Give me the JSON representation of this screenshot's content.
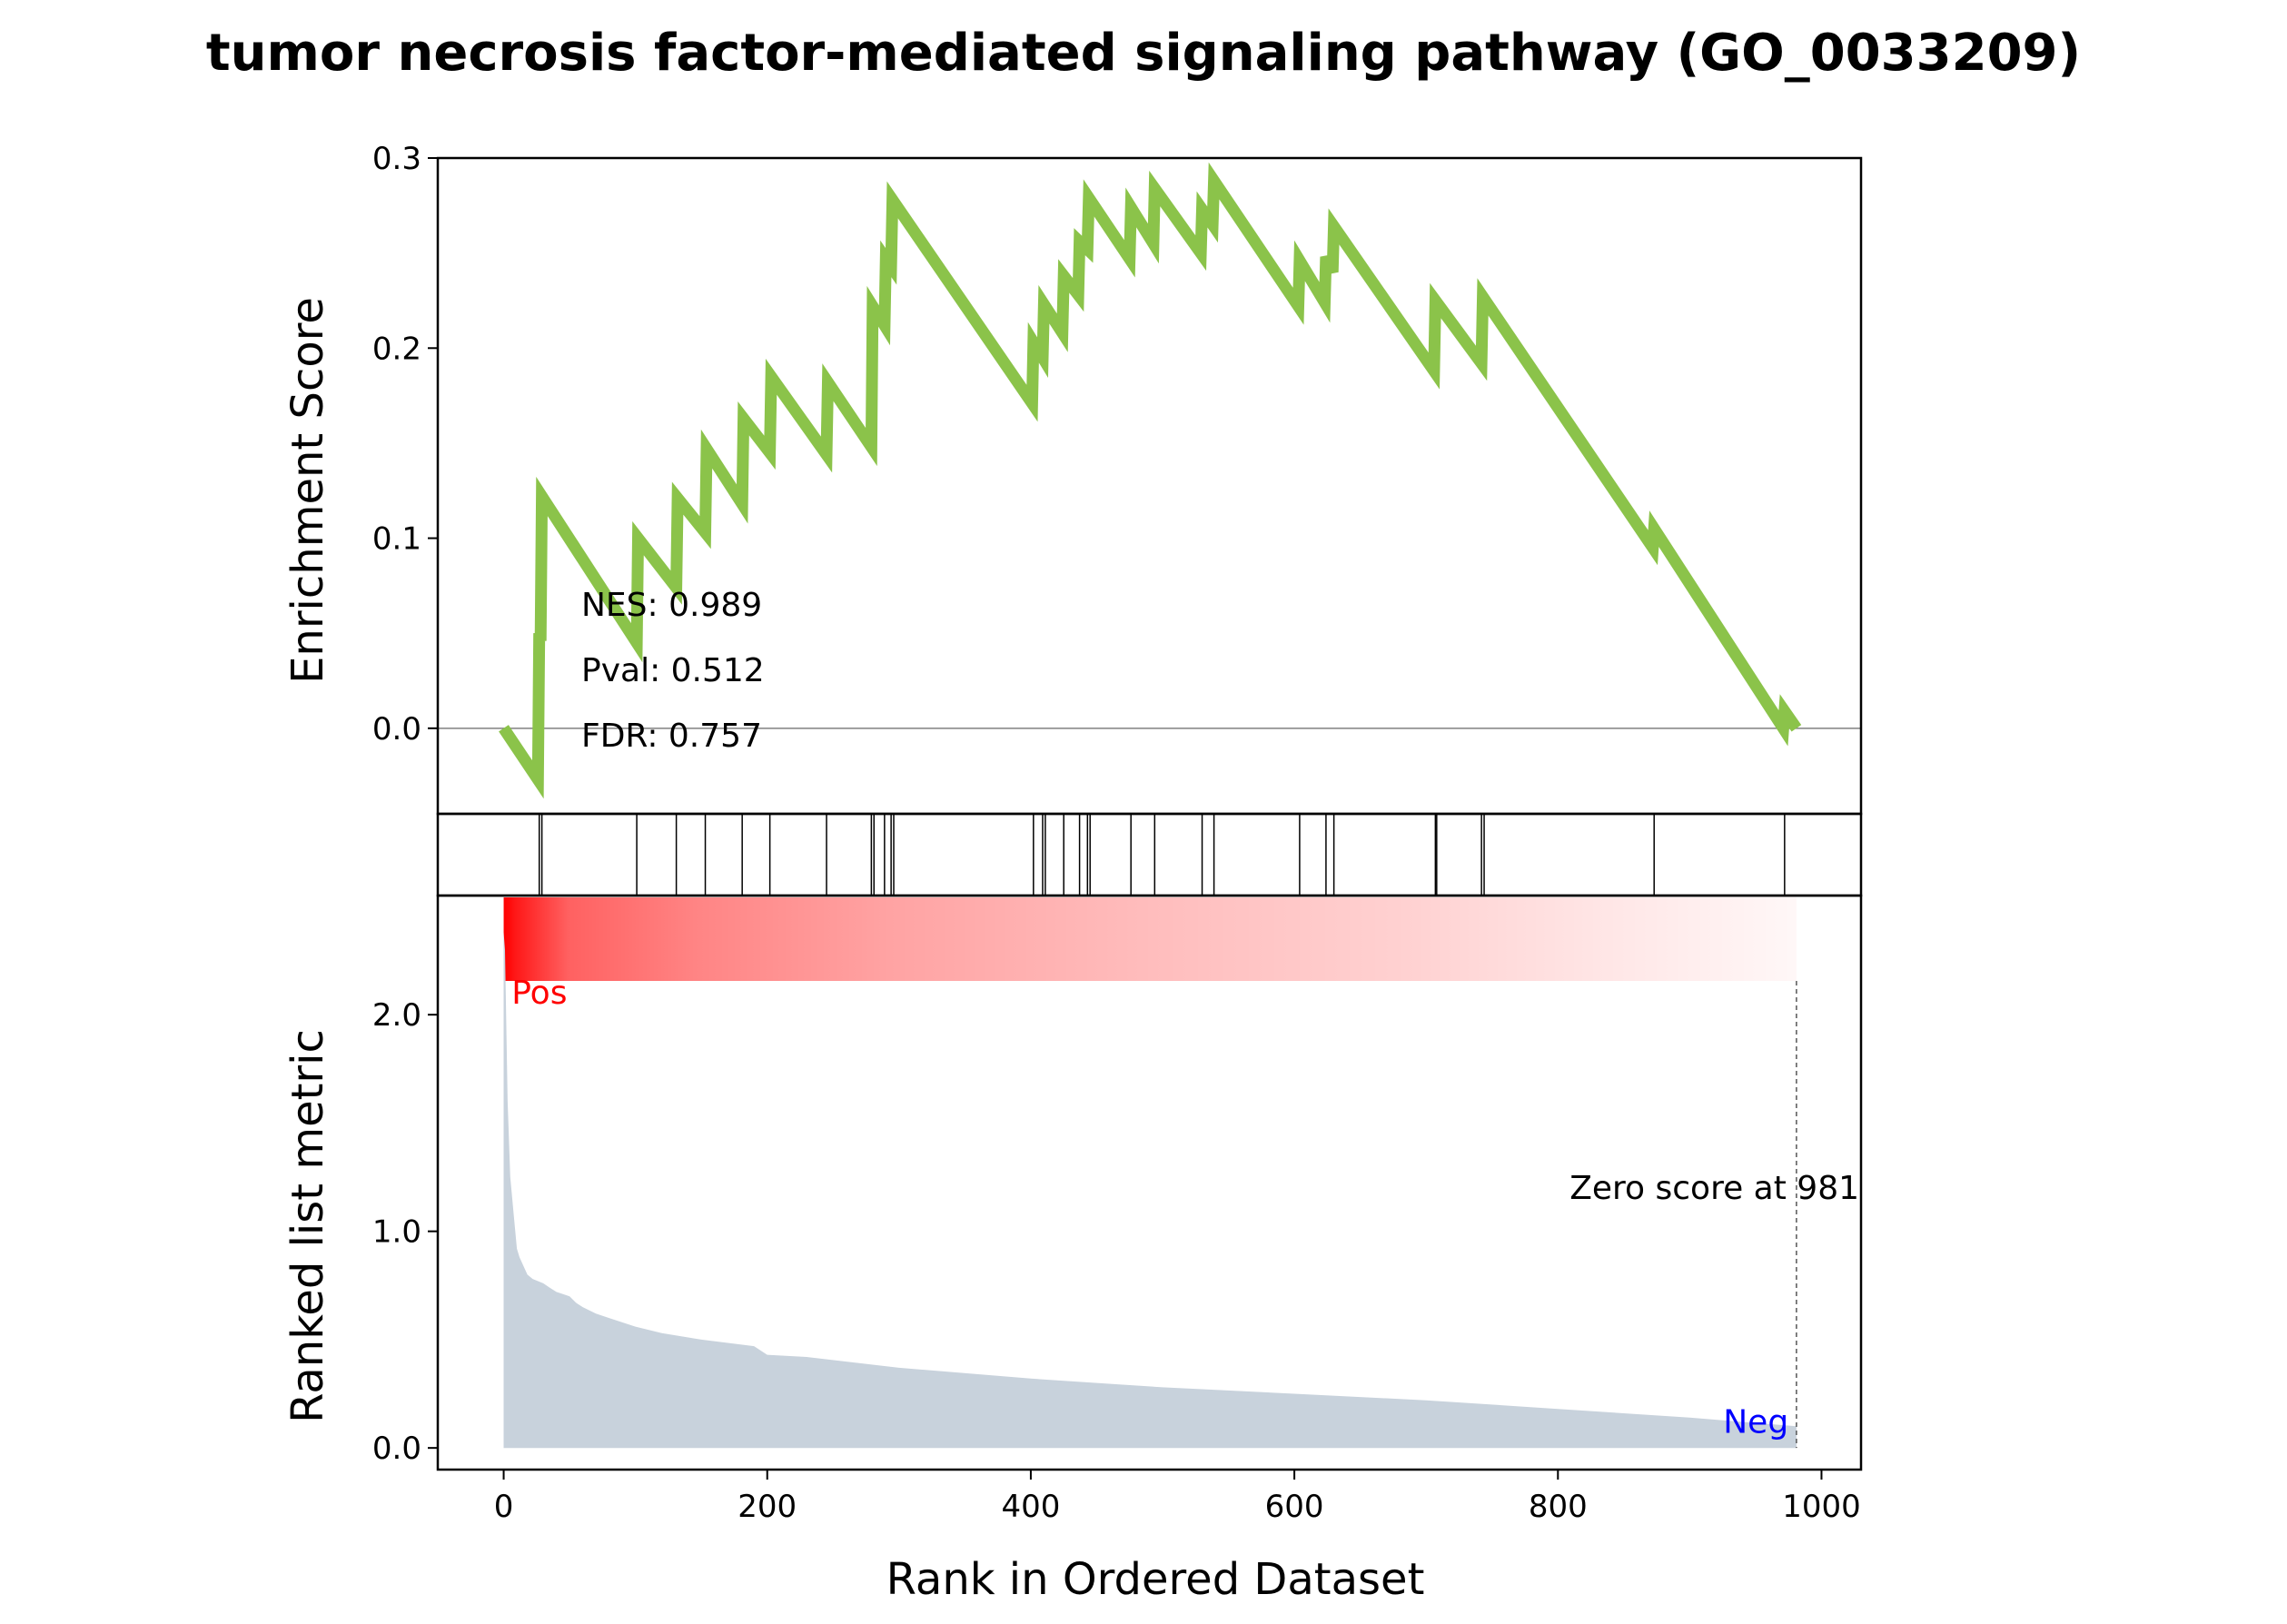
{
  "chart_data": {
    "type": "line",
    "title": "tumor necrosis factor-mediated signaling pathway (GO_0033209)",
    "xlabel": "Rank in Ordered Dataset",
    "xlim": [
      -50,
      1030
    ],
    "x_ticks": [
      0,
      200,
      400,
      600,
      800,
      1000
    ],
    "x_tick_labels": [
      "0",
      "200",
      "400",
      "600",
      "800",
      "1000"
    ],
    "enrichment_panel": {
      "ylabel": "Enrichment Score",
      "ylim": [
        -0.045,
        0.3
      ],
      "y_ticks": [
        0.0,
        0.1,
        0.2,
        0.3
      ],
      "y_tick_labels": [
        "0.0",
        "0.1",
        "0.2",
        "0.3"
      ],
      "line_color": "#8bc34a",
      "zero_line_color": "#808080",
      "stats": [
        "NES: 0.989",
        "Pval: 0.512",
        "FDR: 0.757"
      ],
      "series": [
        {
          "x": [
            0,
            26,
            27,
            28,
            29,
            101,
            102,
            131,
            132,
            153,
            154,
            181,
            182,
            202,
            203,
            245,
            246,
            279,
            280,
            289,
            290,
            294,
            295,
            401,
            402,
            409,
            410,
            424,
            425,
            436,
            437,
            443,
            444,
            475,
            476,
            493,
            494,
            529,
            530,
            538,
            539,
            603,
            604,
            623,
            624,
            629,
            630,
            706,
            707,
            742,
            743,
            872,
            873,
            971,
            972,
            981
          ],
          "y": [
            0.0,
            -0.027,
            0.05,
            0.046,
            0.122,
            0.045,
            0.1,
            0.074,
            0.121,
            0.103,
            0.147,
            0.118,
            0.163,
            0.145,
            0.185,
            0.144,
            0.182,
            0.148,
            0.222,
            0.212,
            0.247,
            0.243,
            0.278,
            0.171,
            0.203,
            0.195,
            0.223,
            0.208,
            0.238,
            0.228,
            0.256,
            0.252,
            0.279,
            0.247,
            0.274,
            0.255,
            0.284,
            0.25,
            0.273,
            0.265,
            0.288,
            0.222,
            0.246,
            0.224,
            0.248,
            0.24,
            0.264,
            0.188,
            0.225,
            0.192,
            0.227,
            0.095,
            0.105,
            0.0,
            0.009,
            0.0
          ]
        }
      ]
    },
    "hits_panel": {
      "hit_ranks": [
        27,
        29,
        101,
        131,
        153,
        181,
        202,
        245,
        279,
        281,
        289,
        294,
        296,
        402,
        409,
        411,
        425,
        437,
        443,
        445,
        476,
        494,
        530,
        539,
        604,
        624,
        630,
        707,
        708,
        742,
        744,
        873,
        972
      ]
    },
    "heatmap_panel": {
      "x_range": [
        0,
        981
      ],
      "color_from": "#ff0000",
      "color_to": "#ffffff"
    },
    "metric_panel": {
      "ylabel": "Ranked list metric",
      "ylim": [
        -0.1,
        2.55
      ],
      "y_ticks": [
        0.0,
        1.0,
        2.0
      ],
      "y_tick_labels": [
        "0.0",
        "1.0",
        "2.0"
      ],
      "fill_color": "#c8d2dc",
      "pos_label": "Pos",
      "pos_color": "#ff0000",
      "neg_label": "Neg",
      "neg_color": "#0000ff",
      "zero_score_label": "Zero score at 981",
      "zero_score_rank": 981,
      "series": [
        {
          "x": [
            0,
            1,
            3,
            5,
            8,
            10,
            12,
            15,
            18,
            22,
            26,
            30,
            35,
            40,
            45,
            50,
            55,
            60,
            70,
            80,
            100,
            120,
            150,
            190,
            200,
            230,
            300,
            400,
            500,
            600,
            700,
            800,
            900,
            981
          ],
          "y": [
            2.38,
            2.3,
            1.6,
            1.25,
            1.05,
            0.92,
            0.88,
            0.84,
            0.8,
            0.78,
            0.77,
            0.76,
            0.74,
            0.72,
            0.71,
            0.7,
            0.67,
            0.65,
            0.62,
            0.6,
            0.56,
            0.53,
            0.5,
            0.47,
            0.43,
            0.42,
            0.37,
            0.32,
            0.28,
            0.25,
            0.22,
            0.18,
            0.14,
            0.1
          ]
        }
      ]
    }
  }
}
